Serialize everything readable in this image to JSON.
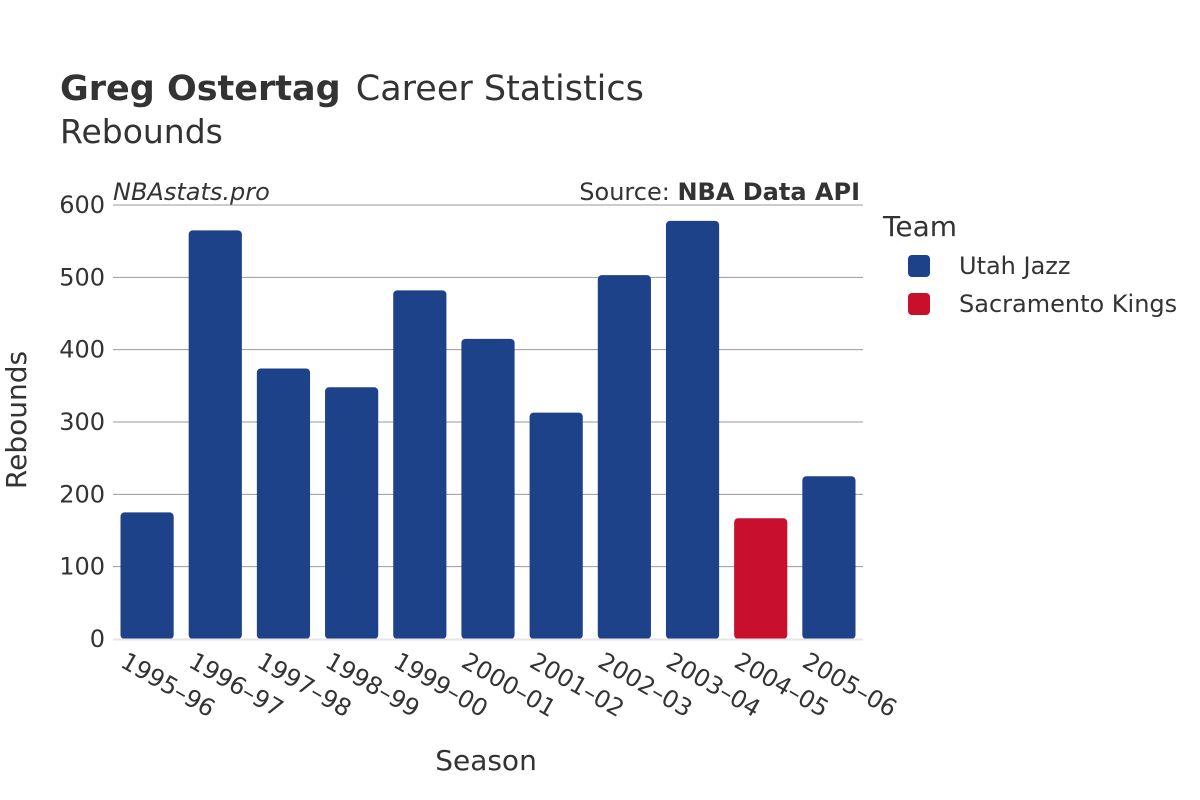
{
  "chart_data": {
    "type": "bar",
    "title_bold": "Greg Ostertag",
    "title_rest": "Career Statistics",
    "subtitle": "Rebounds",
    "watermark": "NBAstats.pro",
    "source_prefix": "Source: ",
    "source_name": "NBA Data API",
    "xlabel": "Season",
    "ylabel": "Rebounds",
    "ylim": [
      0,
      600
    ],
    "yticks": [
      0,
      100,
      200,
      300,
      400,
      500,
      600
    ],
    "grid": true,
    "legend_title": "Team",
    "legend_position": "right",
    "categories": [
      "1995–96",
      "1996–97",
      "1997–98",
      "1998–99",
      "1999–00",
      "2000–01",
      "2001–02",
      "2002–03",
      "2003–04",
      "2004–05",
      "2005–06"
    ],
    "values": [
      175,
      565,
      374,
      348,
      482,
      415,
      313,
      503,
      578,
      167,
      225
    ],
    "teams": [
      "Utah Jazz",
      "Utah Jazz",
      "Utah Jazz",
      "Utah Jazz",
      "Utah Jazz",
      "Utah Jazz",
      "Utah Jazz",
      "Utah Jazz",
      "Utah Jazz",
      "Sacramento Kings",
      "Utah Jazz"
    ],
    "series": [
      {
        "name": "Utah Jazz",
        "color": "#1d428a"
      },
      {
        "name": "Sacramento Kings",
        "color": "#c8102e"
      }
    ]
  }
}
